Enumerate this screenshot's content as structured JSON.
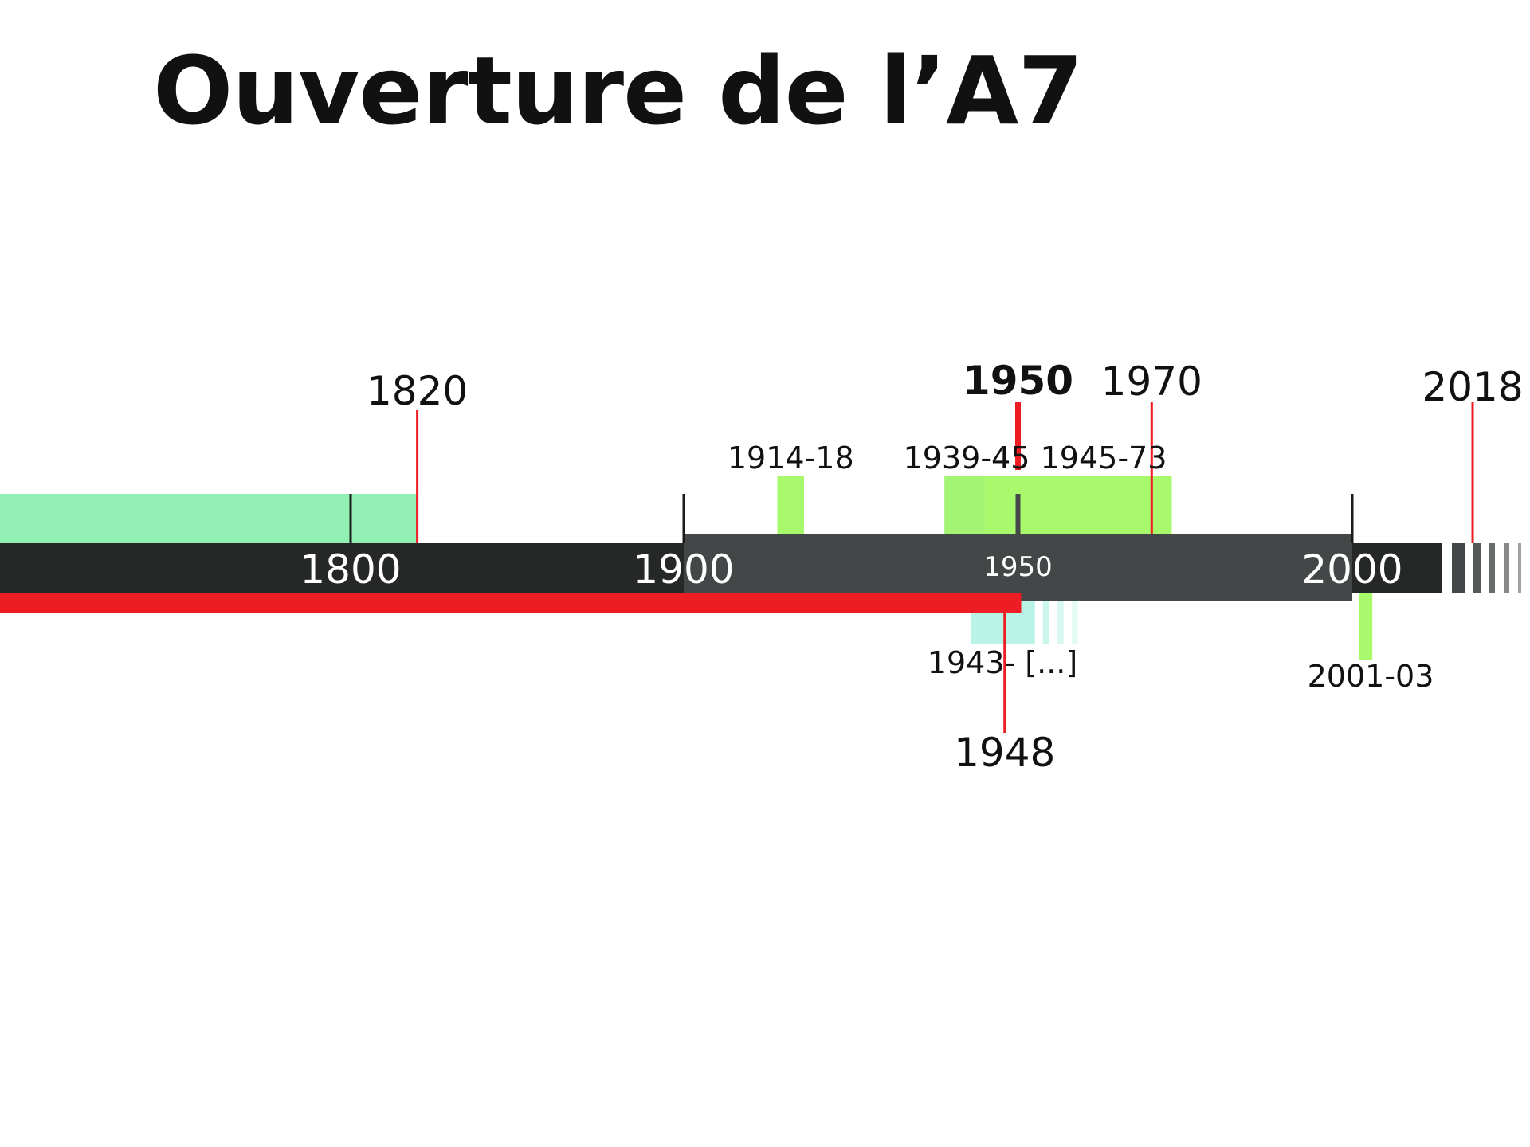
{
  "title": "Ouverture de l’A7",
  "colors": {
    "axis_dark": "#262828",
    "axis_mid": "#434748",
    "accent_red": "#ee1d23",
    "period_mint": "#92f0b4",
    "period_lime": "#a8fa6c",
    "period_cyan": "#b9f3e6",
    "text": "#111111"
  },
  "axis": {
    "ticks": [
      {
        "year": 1800,
        "label": "1800"
      },
      {
        "year": 1900,
        "label": "1900"
      },
      {
        "year": 1950,
        "label": "1950"
      },
      {
        "year": 2000,
        "label": "2000"
      }
    ]
  },
  "events": [
    {
      "year": 1820,
      "label": "1820",
      "bold": false
    },
    {
      "year": 1950,
      "label": "1950",
      "bold": true
    },
    {
      "year": 1970,
      "label": "1970",
      "bold": false
    },
    {
      "year": 2018,
      "label": "2018",
      "bold": false
    },
    {
      "year": 1948,
      "label": "1948",
      "bold": false,
      "below": true
    }
  ],
  "periods_above": [
    {
      "start": 1914,
      "end": 1918,
      "label": "1914-18"
    },
    {
      "start": 1939,
      "end": 1945,
      "label": "1939-45"
    },
    {
      "start": 1945,
      "end": 1973,
      "label": "1945-73"
    }
  ],
  "periods_below": [
    {
      "start": 1943,
      "end": null,
      "label": "1943- [...]"
    },
    {
      "start": 2001,
      "end": 2003,
      "label": "2001-03"
    }
  ],
  "red_bar": {
    "end_year": 1950
  }
}
